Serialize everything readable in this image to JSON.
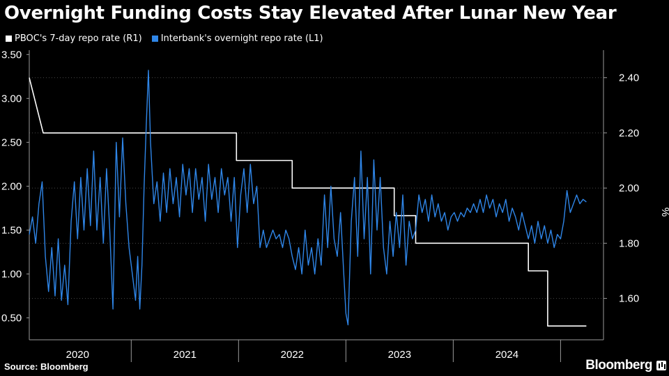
{
  "title": "Overnight Funding Costs Stay Elevated After Lunar New Year",
  "source": "Source: Bloomberg",
  "brand": "Bloomberg",
  "colors": {
    "background": "#000000",
    "pboc": "#ffffff",
    "interbank": "#2f86e8",
    "grid": "#4a4a4a"
  },
  "chart_data": {
    "type": "line",
    "title": "Overnight Funding Costs Stay Elevated After Lunar New Year",
    "xlabel": "",
    "ylabel_right": "%",
    "x_range": [
      2019.55,
      2024.9
    ],
    "x_ticks": [
      {
        "label": "2020",
        "pos": 2020.0
      },
      {
        "label": "2021",
        "pos": 2021.0
      },
      {
        "label": "2022",
        "pos": 2022.0
      },
      {
        "label": "2023",
        "pos": 2023.0
      },
      {
        "label": "2024",
        "pos": 2024.0
      }
    ],
    "year_dividers": [
      2020.5,
      2021.5,
      2022.5,
      2023.5,
      2024.5
    ],
    "y_left": {
      "range": [
        0.25,
        3.55
      ],
      "ticks": [
        "0.50",
        "1.00",
        "1.50",
        "2.00",
        "2.50",
        "3.00",
        "3.50"
      ]
    },
    "y_right": {
      "range": [
        1.45,
        2.5
      ],
      "ticks": [
        "1.60",
        "1.80",
        "2.00",
        "2.20",
        "2.40"
      ],
      "unit": "%"
    },
    "legend": [
      {
        "label": "PBOC's 7-day repo rate  (R1)",
        "color": "#ffffff"
      },
      {
        "label": "Interbank's overnight repo rate (L1)",
        "color": "#2f86e8"
      }
    ],
    "series": [
      {
        "name": "PBOC's 7-day repo rate (R1)",
        "axis": "right",
        "color": "#ffffff",
        "points": [
          [
            2019.55,
            2.4
          ],
          [
            2019.68,
            2.2
          ],
          [
            2021.48,
            2.2
          ],
          [
            2021.48,
            2.1
          ],
          [
            2022.0,
            2.1
          ],
          [
            2022.0,
            2.0
          ],
          [
            2022.95,
            2.0
          ],
          [
            2022.95,
            1.9
          ],
          [
            2023.15,
            1.9
          ],
          [
            2023.15,
            1.8
          ],
          [
            2024.2,
            1.8
          ],
          [
            2024.2,
            1.7
          ],
          [
            2024.38,
            1.7
          ],
          [
            2024.38,
            1.5
          ],
          [
            2024.74,
            1.5
          ]
        ]
      },
      {
        "name": "Interbank's overnight repo rate (L1)",
        "axis": "left",
        "color": "#2f86e8",
        "points": [
          [
            2019.55,
            1.45
          ],
          [
            2019.58,
            1.65
          ],
          [
            2019.61,
            1.35
          ],
          [
            2019.64,
            1.8
          ],
          [
            2019.67,
            2.05
          ],
          [
            2019.7,
            1.2
          ],
          [
            2019.73,
            0.8
          ],
          [
            2019.76,
            1.3
          ],
          [
            2019.79,
            0.75
          ],
          [
            2019.82,
            1.4
          ],
          [
            2019.85,
            0.7
          ],
          [
            2019.88,
            1.1
          ],
          [
            2019.91,
            0.65
          ],
          [
            2019.94,
            1.6
          ],
          [
            2019.97,
            2.05
          ],
          [
            2020.0,
            1.4
          ],
          [
            2020.03,
            2.1
          ],
          [
            2020.06,
            1.5
          ],
          [
            2020.09,
            2.2
          ],
          [
            2020.12,
            1.55
          ],
          [
            2020.15,
            2.4
          ],
          [
            2020.18,
            1.5
          ],
          [
            2020.21,
            2.1
          ],
          [
            2020.24,
            1.35
          ],
          [
            2020.27,
            2.2
          ],
          [
            2020.3,
            1.5
          ],
          [
            2020.33,
            0.6
          ],
          [
            2020.36,
            2.5
          ],
          [
            2020.39,
            1.65
          ],
          [
            2020.42,
            2.55
          ],
          [
            2020.45,
            1.8
          ],
          [
            2020.48,
            1.3
          ],
          [
            2020.51,
            1.0
          ],
          [
            2020.54,
            0.7
          ],
          [
            2020.56,
            1.2
          ],
          [
            2020.58,
            0.6
          ],
          [
            2020.6,
            1.1
          ],
          [
            2020.62,
            2.0
          ],
          [
            2020.64,
            2.7
          ],
          [
            2020.66,
            3.32
          ],
          [
            2020.68,
            2.5
          ],
          [
            2020.71,
            1.8
          ],
          [
            2020.74,
            2.05
          ],
          [
            2020.77,
            1.6
          ],
          [
            2020.8,
            2.15
          ],
          [
            2020.83,
            1.7
          ],
          [
            2020.86,
            2.2
          ],
          [
            2020.89,
            1.8
          ],
          [
            2020.92,
            2.1
          ],
          [
            2020.95,
            1.65
          ],
          [
            2020.98,
            2.25
          ],
          [
            2021.01,
            1.9
          ],
          [
            2021.04,
            2.2
          ],
          [
            2021.07,
            1.7
          ],
          [
            2021.1,
            2.2
          ],
          [
            2021.13,
            1.85
          ],
          [
            2021.16,
            2.1
          ],
          [
            2021.19,
            1.6
          ],
          [
            2021.22,
            2.25
          ],
          [
            2021.25,
            1.85
          ],
          [
            2021.28,
            2.1
          ],
          [
            2021.31,
            1.7
          ],
          [
            2021.34,
            2.2
          ],
          [
            2021.37,
            1.9
          ],
          [
            2021.4,
            2.1
          ],
          [
            2021.43,
            1.6
          ],
          [
            2021.46,
            2.1
          ],
          [
            2021.49,
            1.3
          ],
          [
            2021.52,
            1.9
          ],
          [
            2021.55,
            2.2
          ],
          [
            2021.58,
            1.7
          ],
          [
            2021.61,
            2.25
          ],
          [
            2021.64,
            1.8
          ],
          [
            2021.67,
            2.0
          ],
          [
            2021.7,
            1.3
          ],
          [
            2021.73,
            1.5
          ],
          [
            2021.76,
            1.3
          ],
          [
            2021.79,
            1.4
          ],
          [
            2021.82,
            1.5
          ],
          [
            2021.85,
            1.4
          ],
          [
            2021.88,
            1.45
          ],
          [
            2021.91,
            1.3
          ],
          [
            2021.94,
            1.5
          ],
          [
            2021.97,
            1.4
          ],
          [
            2022.0,
            1.2
          ],
          [
            2022.03,
            1.05
          ],
          [
            2022.06,
            1.3
          ],
          [
            2022.09,
            1.0
          ],
          [
            2022.12,
            1.5
          ],
          [
            2022.15,
            1.1
          ],
          [
            2022.18,
            1.3
          ],
          [
            2022.21,
            1.0
          ],
          [
            2022.24,
            1.4
          ],
          [
            2022.27,
            1.1
          ],
          [
            2022.3,
            1.9
          ],
          [
            2022.33,
            1.3
          ],
          [
            2022.36,
            2.0
          ],
          [
            2022.39,
            1.4
          ],
          [
            2022.42,
            1.2
          ],
          [
            2022.45,
            1.7
          ],
          [
            2022.48,
            1.0
          ],
          [
            2022.5,
            0.55
          ],
          [
            2022.52,
            0.42
          ],
          [
            2022.55,
            1.6
          ],
          [
            2022.58,
            2.1
          ],
          [
            2022.61,
            1.2
          ],
          [
            2022.64,
            2.4
          ],
          [
            2022.67,
            1.4
          ],
          [
            2022.7,
            2.1
          ],
          [
            2022.73,
            1.0
          ],
          [
            2022.76,
            2.3
          ],
          [
            2022.79,
            1.5
          ],
          [
            2022.82,
            2.1
          ],
          [
            2022.85,
            1.3
          ],
          [
            2022.88,
            1.0
          ],
          [
            2022.91,
            1.6
          ],
          [
            2022.94,
            1.2
          ],
          [
            2022.97,
            1.7
          ],
          [
            2023.0,
            1.3
          ],
          [
            2023.03,
            1.9
          ],
          [
            2023.06,
            1.1
          ],
          [
            2023.09,
            1.6
          ],
          [
            2023.12,
            1.4
          ],
          [
            2023.15,
            1.5
          ],
          [
            2023.18,
            1.9
          ],
          [
            2023.21,
            1.7
          ],
          [
            2023.24,
            1.85
          ],
          [
            2023.27,
            1.6
          ],
          [
            2023.3,
            1.9
          ],
          [
            2023.33,
            1.65
          ],
          [
            2023.36,
            1.8
          ],
          [
            2023.39,
            1.6
          ],
          [
            2023.42,
            1.7
          ],
          [
            2023.45,
            1.5
          ],
          [
            2023.48,
            1.65
          ],
          [
            2023.51,
            1.7
          ],
          [
            2023.54,
            1.6
          ],
          [
            2023.57,
            1.7
          ],
          [
            2023.6,
            1.65
          ],
          [
            2023.63,
            1.75
          ],
          [
            2023.66,
            1.7
          ],
          [
            2023.69,
            1.8
          ],
          [
            2023.72,
            1.7
          ],
          [
            2023.75,
            1.85
          ],
          [
            2023.78,
            1.7
          ],
          [
            2023.81,
            1.9
          ],
          [
            2023.84,
            1.75
          ],
          [
            2023.87,
            1.85
          ],
          [
            2023.9,
            1.65
          ],
          [
            2023.93,
            1.8
          ],
          [
            2023.96,
            1.7
          ],
          [
            2023.99,
            1.85
          ],
          [
            2024.02,
            1.6
          ],
          [
            2024.05,
            1.75
          ],
          [
            2024.08,
            1.65
          ],
          [
            2024.11,
            1.5
          ],
          [
            2024.14,
            1.7
          ],
          [
            2024.17,
            1.55
          ],
          [
            2024.2,
            1.4
          ],
          [
            2024.23,
            1.55
          ],
          [
            2024.26,
            1.35
          ],
          [
            2024.29,
            1.6
          ],
          [
            2024.32,
            1.4
          ],
          [
            2024.35,
            1.55
          ],
          [
            2024.38,
            1.35
          ],
          [
            2024.41,
            1.5
          ],
          [
            2024.44,
            1.3
          ],
          [
            2024.47,
            1.45
          ],
          [
            2024.5,
            1.4
          ],
          [
            2024.53,
            1.6
          ],
          [
            2024.56,
            1.95
          ],
          [
            2024.59,
            1.7
          ],
          [
            2024.62,
            1.8
          ],
          [
            2024.65,
            1.9
          ],
          [
            2024.68,
            1.8
          ],
          [
            2024.71,
            1.85
          ],
          [
            2024.74,
            1.82
          ]
        ]
      }
    ]
  }
}
